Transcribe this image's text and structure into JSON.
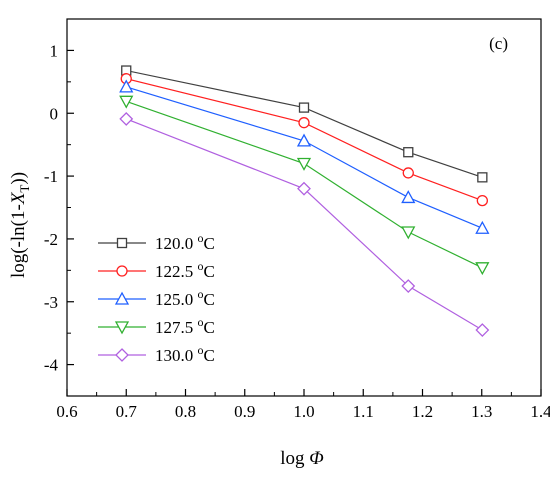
{
  "chart_data": {
    "type": "line",
    "panel_label": "(c)",
    "xlabel_prefix": "log ",
    "xlabel_symbol": "Φ",
    "ylabel_prefix": "log(-ln(1-",
    "ylabel_var": "X",
    "ylabel_sub": "T",
    "ylabel_suffix": "))",
    "xlim": [
      0.6,
      1.4
    ],
    "ylim": [
      -4.5,
      1.5
    ],
    "x_ticks": [
      "0.6",
      "0.7",
      "0.8",
      "0.9",
      "1.0",
      "1.1",
      "1.2",
      "1.3",
      "1.4"
    ],
    "x_tick_values": [
      0.6,
      0.7,
      0.8,
      0.9,
      1.0,
      1.1,
      1.2,
      1.3,
      1.4
    ],
    "y_ticks": [
      "1",
      "0",
      "-1",
      "-2",
      "-3",
      "-4"
    ],
    "y_tick_values": [
      1,
      0,
      -1,
      -2,
      -3,
      -4
    ],
    "grid": false,
    "legend_position": "bottom-left",
    "x": [
      0.7,
      1.0,
      1.176,
      1.301
    ],
    "series": [
      {
        "name": "120.0 °C",
        "name_main": "120.0 ",
        "name_sup": "o",
        "name_unit": "C",
        "marker": "square",
        "color": "#404040",
        "values": [
          0.68,
          0.09,
          -0.62,
          -1.02
        ]
      },
      {
        "name": "122.5 °C",
        "name_main": "122.5 ",
        "name_sup": "o",
        "name_unit": "C",
        "marker": "circle",
        "color": "#ff2020",
        "values": [
          0.55,
          -0.15,
          -0.95,
          -1.39
        ]
      },
      {
        "name": "125.0 °C",
        "name_main": "125.0 ",
        "name_sup": "o",
        "name_unit": "C",
        "marker": "triangle-up",
        "color": "#1f5fff",
        "values": [
          0.42,
          -0.44,
          -1.34,
          -1.83
        ]
      },
      {
        "name": "127.5 °C",
        "name_main": "127.5 ",
        "name_sup": "o",
        "name_unit": "C",
        "marker": "triangle-down",
        "color": "#30b030",
        "values": [
          0.19,
          -0.8,
          -1.89,
          -2.46
        ]
      },
      {
        "name": "130.0 °C",
        "name_main": "130.0 ",
        "name_sup": "o",
        "name_unit": "C",
        "marker": "diamond",
        "color": "#b060e0",
        "values": [
          -0.09,
          -1.2,
          -2.75,
          -3.45
        ]
      }
    ]
  }
}
